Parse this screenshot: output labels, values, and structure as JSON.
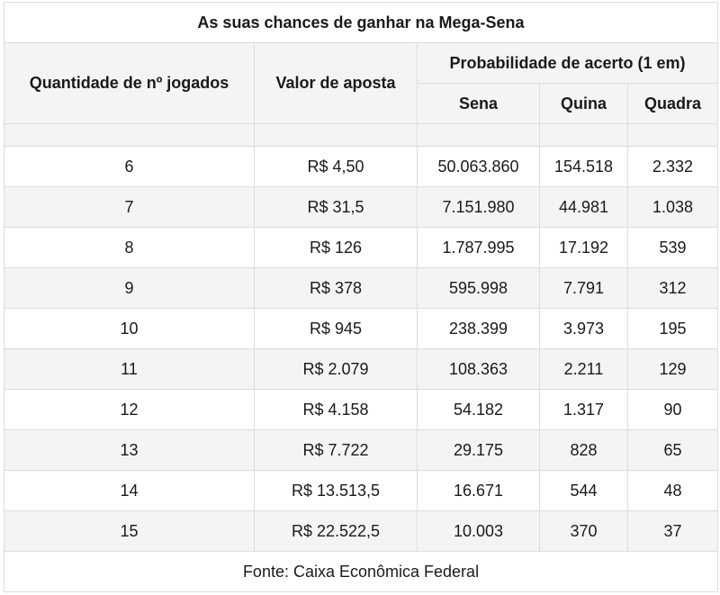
{
  "table": {
    "title": "As suas chances de ganhar na Mega-Sena",
    "headers": {
      "quantity": "Quantidade de nº jogados",
      "bet_value": "Valor de aposta",
      "probability": "Probabilidade de acerto (1 em)",
      "sena": "Sena",
      "quina": "Quina",
      "quadra": "Quadra"
    },
    "rows": [
      {
        "qty": "6",
        "value": "R$ 4,50",
        "sena": "50.063.860",
        "quina": "154.518",
        "quadra": "2.332"
      },
      {
        "qty": "7",
        "value": "R$ 31,5",
        "sena": "7.151.980",
        "quina": "44.981",
        "quadra": "1.038"
      },
      {
        "qty": "8",
        "value": "R$ 126",
        "sena": "1.787.995",
        "quina": "17.192",
        "quadra": "539"
      },
      {
        "qty": "9",
        "value": "R$ 378",
        "sena": "595.998",
        "quina": "7.791",
        "quadra": "312"
      },
      {
        "qty": "10",
        "value": "R$ 945",
        "sena": "238.399",
        "quina": "3.973",
        "quadra": "195"
      },
      {
        "qty": "11",
        "value": "R$ 2.079",
        "sena": "108.363",
        "quina": "2.211",
        "quadra": "129"
      },
      {
        "qty": "12",
        "value": "R$ 4.158",
        "sena": "54.182",
        "quina": "1.317",
        "quadra": "90"
      },
      {
        "qty": "13",
        "value": "R$ 7.722",
        "sena": "29.175",
        "quina": "828",
        "quadra": "65"
      },
      {
        "qty": "14",
        "value": "R$ 13.513,5",
        "sena": "16.671",
        "quina": "544",
        "quadra": "48"
      },
      {
        "qty": "15",
        "value": "R$ 22.522,5",
        "sena": "10.003",
        "quina": "370",
        "quadra": "37"
      }
    ],
    "footer": "Fonte: Caixa Econômica Federal"
  }
}
